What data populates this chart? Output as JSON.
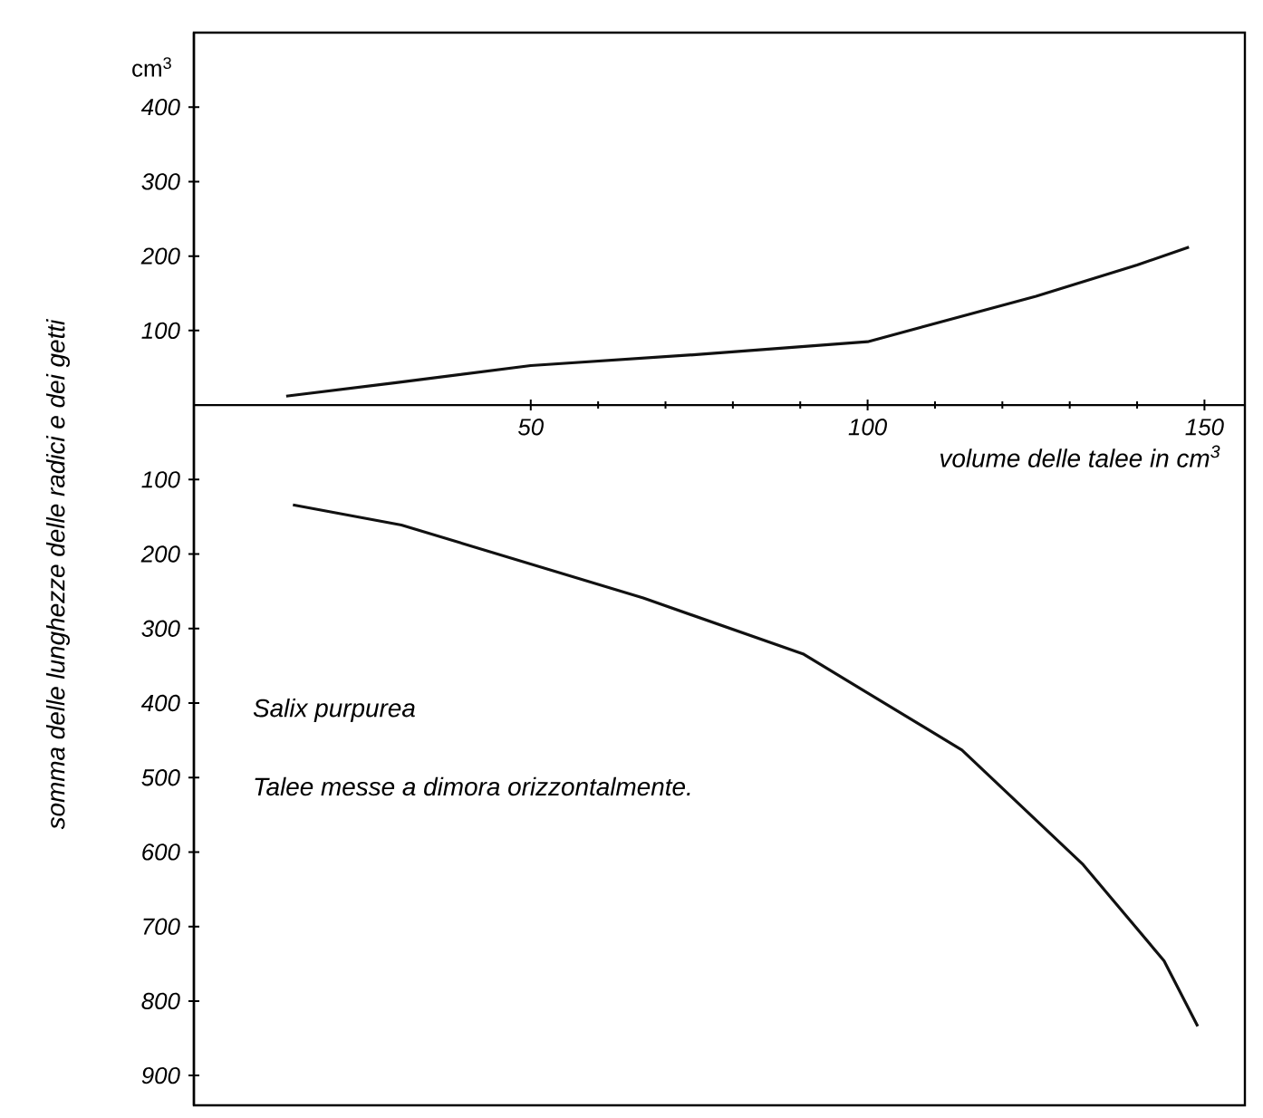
{
  "chart_data": {
    "type": "line",
    "ylabel": "somma delle lunghezze delle radici e dei getti",
    "xlabel": "volume delle talee in cm$^{3}$",
    "annotations": [
      "cm$^{3}$",
      "Salix purpurea",
      "Talee messe a dimora orizzontalmente."
    ],
    "xlim": [
      0,
      156
    ],
    "xticks": [
      50,
      100,
      150
    ],
    "ylim": [
      -940,
      500
    ],
    "yticks": [
      {
        "value": -900,
        "label": "900"
      },
      {
        "value": -800,
        "label": "800"
      },
      {
        "value": -700,
        "label": "700"
      },
      {
        "value": -600,
        "label": "600"
      },
      {
        "value": -500,
        "label": "500"
      },
      {
        "value": -400,
        "label": "400"
      },
      {
        "value": -300,
        "label": "300"
      },
      {
        "value": -200,
        "label": "200"
      },
      {
        "value": -100,
        "label": "100"
      },
      100,
      200,
      300,
      400
    ],
    "series": [
      {
        "color": "#111111",
        "x": [
          13.7,
          30,
          50,
          75,
          100,
          125,
          140,
          147.7
        ],
        "values": [
          12,
          30,
          53,
          68,
          85,
          146,
          188,
          212
        ]
      },
      {
        "color": "#111111",
        "x": [
          14.7,
          30.8,
          66.7,
          90.4,
          114,
          132,
          144,
          149
        ],
        "values": [
          -134,
          -161,
          -259,
          -334,
          -463,
          -617,
          -746,
          -834
        ]
      }
    ]
  }
}
